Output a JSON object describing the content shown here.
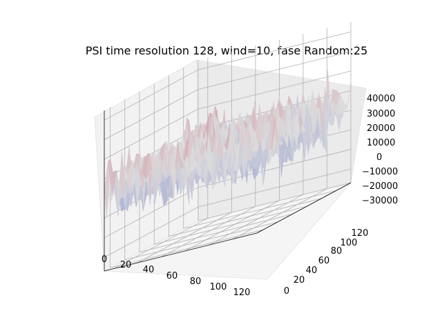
{
  "chart_data": {
    "type": "surface",
    "title": "PSI time resolution 128, wind=10, fase Random:25",
    "colormap": [
      "#3b4cc0",
      "#dddddd",
      "#b40426"
    ],
    "x_axis": {
      "ticks": [
        "0",
        "20",
        "40",
        "60",
        "80",
        "100",
        "120"
      ],
      "lim": [
        0,
        128
      ]
    },
    "y_axis": {
      "ticks": [
        "0",
        "20",
        "40",
        "60",
        "80",
        "100",
        "120"
      ],
      "lim": [
        0,
        128
      ]
    },
    "z_axis": {
      "ticks": [
        "40000",
        "30000",
        "20000",
        "10000",
        "0",
        "−10000",
        "−20000",
        "−30000"
      ],
      "lim": [
        -37000,
        45000
      ]
    },
    "surface": {
      "grid_size": [
        128,
        128
      ],
      "z_range_approx": [
        -33000,
        42000
      ],
      "noise": "random phase, uniform field"
    }
  }
}
